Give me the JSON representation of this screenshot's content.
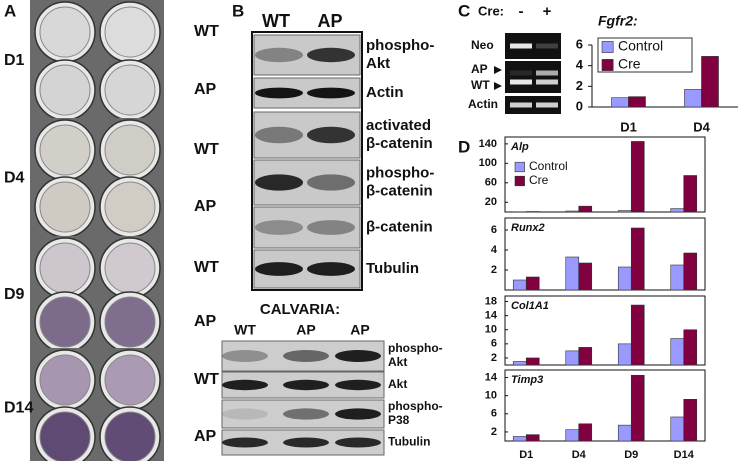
{
  "panel_labels": [
    "A",
    "B",
    "C",
    "D"
  ],
  "panel_a": {
    "rows": [
      {
        "day": "D1",
        "genotypes": [
          "WT",
          "AP"
        ]
      },
      {
        "day": "D4",
        "genotypes": [
          "WT",
          "AP"
        ]
      },
      {
        "day": "D9",
        "genotypes": [
          "WT",
          "AP"
        ]
      },
      {
        "day": "D14",
        "genotypes": [
          "WT",
          "AP"
        ]
      }
    ]
  },
  "panel_b": {
    "headers": [
      "WT",
      "AP"
    ],
    "blots": [
      [
        "phospho-",
        "Akt"
      ],
      [
        "Actin"
      ],
      [
        "activated",
        "β-catenin"
      ],
      [
        "phospho-",
        "β-catenin"
      ],
      [
        "β-catenin"
      ],
      [
        "Tubulin"
      ]
    ],
    "calvaria": {
      "title": "CALVARIA:",
      "headers": [
        "WT",
        "AP",
        "AP"
      ],
      "blots": [
        [
          "phospho-",
          "Akt"
        ],
        [
          "Akt"
        ],
        [
          "phospho-",
          "P38"
        ],
        [
          "Tubulin"
        ]
      ]
    }
  },
  "panel_c": {
    "cre_label": "Cre:",
    "cre_states": [
      "-",
      "+"
    ],
    "gel_labels": [
      "Neo",
      "AP",
      "WT",
      "Actin"
    ]
  },
  "chart_data": [
    {
      "type": "bar",
      "title": "Fgfr2:",
      "categories": [
        "D1",
        "D4"
      ],
      "series": [
        {
          "name": "Control",
          "color": "#9999ff",
          "values": [
            0.9,
            1.7
          ]
        },
        {
          "name": "Cre",
          "color": "#800040",
          "values": [
            1.0,
            4.9
          ]
        }
      ],
      "ylim": [
        0,
        6
      ],
      "yticks": [
        0,
        2,
        4,
        6
      ],
      "legend": "upper left"
    },
    {
      "type": "bar",
      "title": "Alp",
      "categories": [
        null,
        null,
        null,
        null
      ],
      "series": [
        {
          "name": "Control",
          "color": "#9999ff",
          "values": [
            0.5,
            2,
            3,
            7
          ]
        },
        {
          "name": "Cre",
          "color": "#800040",
          "values": [
            1,
            12,
            145,
            75
          ]
        }
      ],
      "ylim": [
        0,
        150
      ],
      "yticks": [
        20,
        60,
        100,
        140
      ],
      "legend": "upper left"
    },
    {
      "type": "bar",
      "title": "Runx2",
      "categories": [
        null,
        null,
        null,
        null
      ],
      "series": [
        {
          "color": "#9999ff",
          "values": [
            1,
            3.3,
            2.3,
            2.5
          ]
        },
        {
          "color": "#800040",
          "values": [
            1.3,
            2.7,
            6.2,
            3.7
          ]
        }
      ],
      "ylim": [
        0,
        7
      ],
      "yticks": [
        2,
        4,
        6
      ]
    },
    {
      "type": "bar",
      "title": "Col1A1",
      "categories": [
        null,
        null,
        null,
        null
      ],
      "series": [
        {
          "color": "#9999ff",
          "values": [
            1,
            4,
            6,
            7.5
          ]
        },
        {
          "color": "#800040",
          "values": [
            2,
            5,
            17,
            10
          ]
        }
      ],
      "ylim": [
        0,
        19
      ],
      "yticks": [
        2,
        6,
        10,
        14,
        18
      ]
    },
    {
      "type": "bar",
      "title": "Timp3",
      "categories": [
        "D1",
        "D4",
        "D9",
        "D14"
      ],
      "series": [
        {
          "color": "#9999ff",
          "values": [
            1,
            2.5,
            3.5,
            5.3
          ]
        },
        {
          "color": "#800040",
          "values": [
            1.4,
            3.8,
            14.5,
            9.2
          ]
        }
      ],
      "ylim": [
        0,
        15
      ],
      "yticks": [
        2,
        6,
        10,
        14
      ]
    }
  ]
}
